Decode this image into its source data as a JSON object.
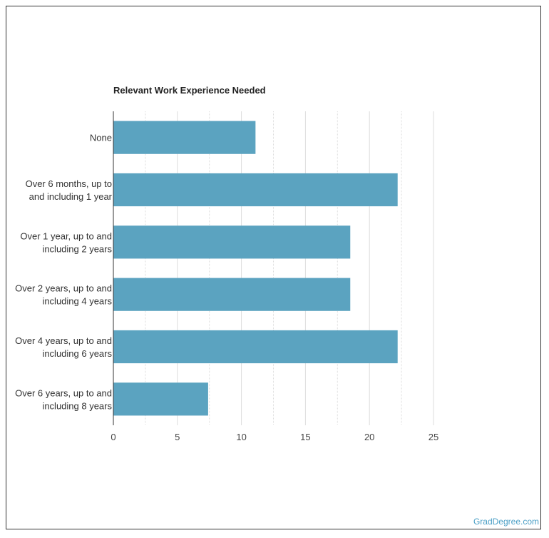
{
  "chart_data": {
    "type": "bar",
    "orientation": "horizontal",
    "title": "Relevant Work Experience Needed",
    "categories": [
      [
        "None"
      ],
      [
        "Over 6 months, up to",
        "and including 1 year"
      ],
      [
        "Over 1 year, up to and",
        "including 2 years"
      ],
      [
        "Over 2 years, up to and",
        "including 4 years"
      ],
      [
        "Over 4 years, up to and",
        "including 6 years"
      ],
      [
        "Over 6 years, up to and",
        "including 8 years"
      ]
    ],
    "values": [
      11.1,
      22.2,
      18.5,
      18.5,
      22.2,
      7.4
    ],
    "xlim": [
      0,
      25
    ],
    "xticks": [
      0,
      5,
      10,
      15,
      20,
      25
    ],
    "grid": true,
    "bar_color": "#5ba3c0",
    "grid_color": "#dddddd",
    "axis_color": "#333333"
  },
  "watermark": "GradDegree.com"
}
